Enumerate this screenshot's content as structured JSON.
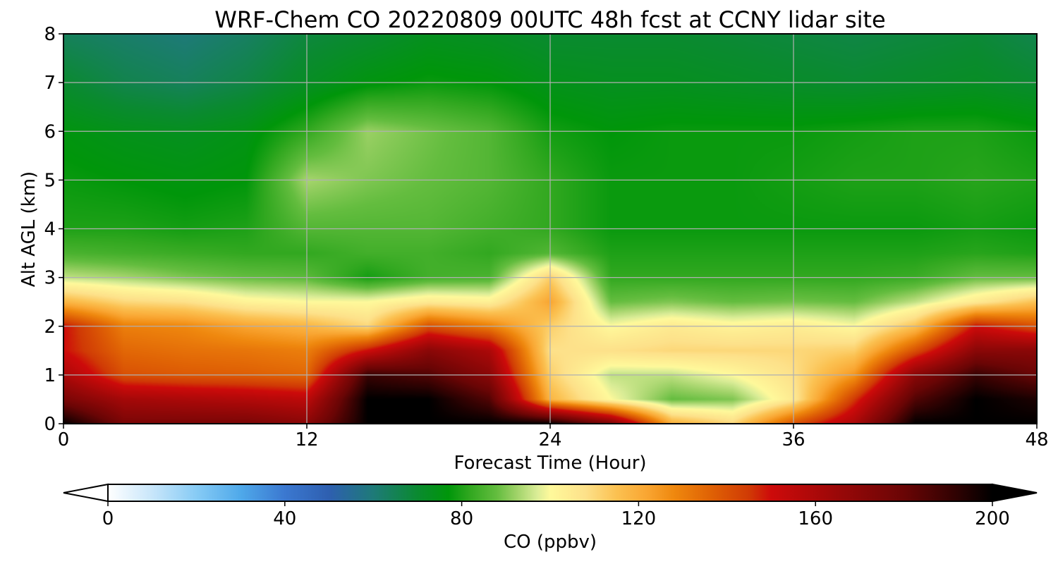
{
  "chart_data": {
    "type": "heatmap",
    "title": "WRF-Chem CO  20220809 00UTC 48h fcst at CCNY lidar site",
    "xlabel": "Forecast Time (Hour)",
    "ylabel": "Alt AGL (km)",
    "xlim": [
      0,
      48
    ],
    "ylim": [
      0,
      8
    ],
    "x_ticks": [
      "0",
      "12",
      "24",
      "36",
      "48"
    ],
    "y_ticks": [
      "0",
      "1",
      "2",
      "3",
      "4",
      "5",
      "6",
      "7",
      "8"
    ],
    "grid": true,
    "colorbar": {
      "label": "CO  (ppbv)",
      "min": 0,
      "max": 200,
      "ticks": [
        "0",
        "40",
        "80",
        "120",
        "160",
        "200"
      ],
      "extend": "both"
    },
    "x_hours": [
      0,
      3,
      6,
      9,
      12,
      15,
      18,
      21,
      24,
      27,
      30,
      33,
      36,
      39,
      42,
      45,
      48
    ],
    "z_km": [
      0,
      0.5,
      1,
      1.5,
      2,
      2.5,
      3,
      3.5,
      4,
      5,
      6,
      7,
      8
    ],
    "values": [
      [
        200,
        175,
        160,
        150,
        150,
        118,
        95,
        85,
        80,
        78,
        76,
        70,
        64
      ],
      [
        175,
        162,
        140,
        135,
        130,
        110,
        93,
        84,
        80,
        77,
        74,
        66,
        62
      ],
      [
        175,
        160,
        138,
        133,
        128,
        108,
        90,
        83,
        79,
        76,
        73,
        64,
        60
      ],
      [
        175,
        158,
        137,
        132,
        122,
        102,
        88,
        82,
        80,
        77,
        75,
        67,
        63
      ],
      [
        170,
        155,
        135,
        130,
        118,
        100,
        87,
        82,
        86,
        93,
        82,
        72,
        68
      ],
      [
        200,
        200,
        190,
        150,
        110,
        100,
        79,
        84,
        86,
        90,
        92,
        76,
        70
      ],
      [
        200,
        200,
        185,
        170,
        140,
        105,
        84,
        84,
        86,
        88,
        89,
        78,
        73
      ],
      [
        200,
        185,
        170,
        160,
        130,
        103,
        85,
        82,
        84,
        86,
        86,
        77,
        72
      ],
      [
        200,
        118,
        112,
        108,
        112,
        122,
        112,
        86,
        82,
        82,
        79,
        74,
        70
      ],
      [
        175,
        100,
        95,
        108,
        100,
        88,
        82,
        80,
        78,
        78,
        77,
        73,
        70
      ],
      [
        120,
        88,
        95,
        110,
        105,
        90,
        82,
        80,
        78,
        78,
        78,
        73,
        70
      ],
      [
        110,
        90,
        100,
        110,
        102,
        88,
        82,
        80,
        78,
        78,
        78,
        72,
        69
      ],
      [
        140,
        105,
        108,
        110,
        104,
        89,
        82,
        80,
        78,
        79,
        78,
        71,
        68
      ],
      [
        160,
        145,
        125,
        112,
        100,
        88,
        82,
        80,
        78,
        80,
        79,
        70,
        67
      ],
      [
        200,
        185,
        170,
        140,
        115,
        95,
        83,
        80,
        78,
        80,
        80,
        71,
        68
      ],
      [
        200,
        200,
        190,
        170,
        150,
        105,
        88,
        81,
        79,
        81,
        80,
        72,
        69
      ],
      [
        200,
        195,
        180,
        170,
        140,
        115,
        88,
        80,
        78,
        80,
        78,
        70,
        66
      ]
    ]
  },
  "colormap": {
    "under": "#ffffff",
    "over": "#000000",
    "stops": [
      [
        0,
        "#ffffff"
      ],
      [
        10,
        "#c8e6fa"
      ],
      [
        20,
        "#87cbf5"
      ],
      [
        30,
        "#4fa9ea"
      ],
      [
        40,
        "#3b78d0"
      ],
      [
        50,
        "#2e5fb0"
      ],
      [
        60,
        "#1e7a78"
      ],
      [
        70,
        "#0a8a30"
      ],
      [
        77,
        "#00960a"
      ],
      [
        82,
        "#32a820"
      ],
      [
        88,
        "#64bd3f"
      ],
      [
        92,
        "#9ad064"
      ],
      [
        97,
        "#d9ec96"
      ],
      [
        100,
        "#fef99b"
      ],
      [
        108,
        "#fde18a"
      ],
      [
        115,
        "#fbc151"
      ],
      [
        122,
        "#f9a531"
      ],
      [
        128,
        "#ef880e"
      ],
      [
        136,
        "#e06305"
      ],
      [
        145,
        "#d03a05"
      ],
      [
        150,
        "#cd0a0a"
      ],
      [
        165,
        "#9a0808"
      ],
      [
        180,
        "#6a0505"
      ],
      [
        192,
        "#2e0202"
      ],
      [
        200,
        "#000000"
      ]
    ]
  }
}
